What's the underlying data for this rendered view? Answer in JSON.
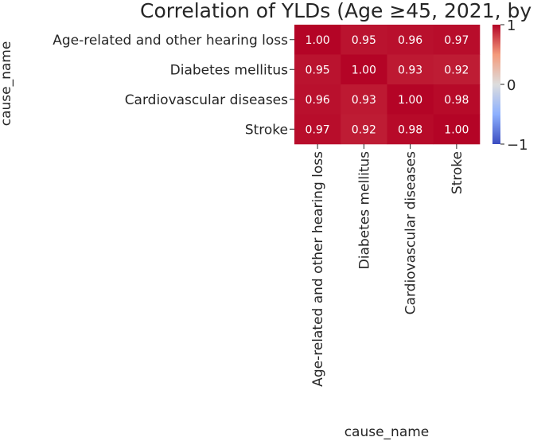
{
  "chart_data": {
    "type": "heatmap",
    "title": "Correlation of YLDs (Age ≥45, 2021, by",
    "xlabel": "cause_name",
    "ylabel": "cause_name",
    "rows": [
      "Age-related and other hearing loss",
      "Diabetes mellitus",
      "Cardiovascular diseases",
      "Stroke"
    ],
    "columns": [
      "Age-related and other hearing loss",
      "Diabetes mellitus",
      "Cardiovascular diseases",
      "Stroke"
    ],
    "values": [
      [
        1.0,
        0.95,
        0.96,
        0.97
      ],
      [
        0.95,
        1.0,
        0.93,
        0.92
      ],
      [
        0.96,
        0.93,
        1.0,
        0.98
      ],
      [
        0.97,
        0.92,
        0.98,
        1.0
      ]
    ],
    "value_format": "2 decimals",
    "colorbar": {
      "range": [
        -1,
        1
      ],
      "colormap": "coolwarm",
      "ticks": [
        {
          "value": 1,
          "label": "1"
        },
        {
          "value": 0,
          "label": "0"
        },
        {
          "value": -1,
          "label": "−1"
        }
      ]
    }
  }
}
